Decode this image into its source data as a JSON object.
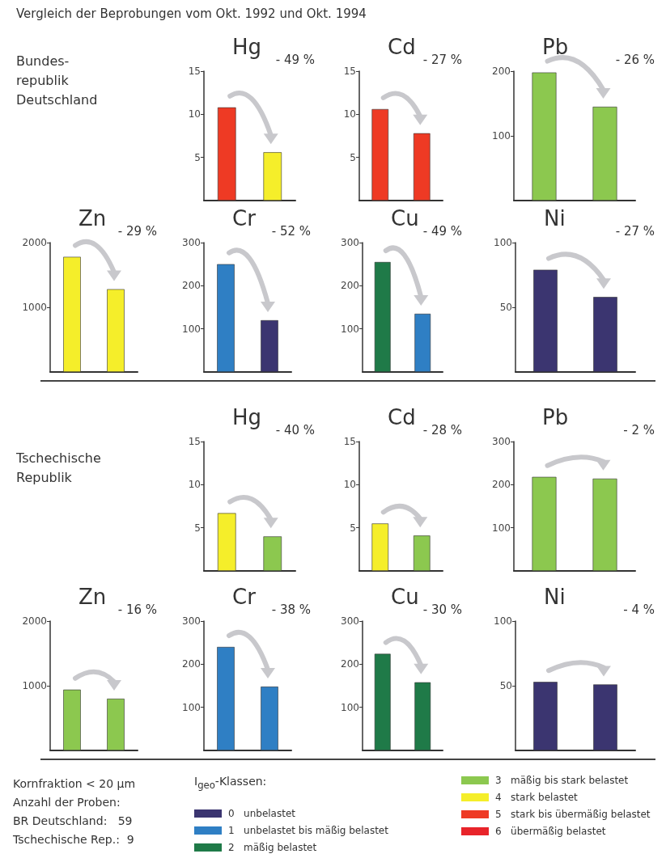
{
  "chart_data": [
    {
      "type": "other",
      "title": "Vergleich der Beprobungen vom Okt. 1992 und Okt. 1994"
    },
    {
      "type": "other",
      "annotations": [
        "Bundes-",
        "republik",
        "Deutschland"
      ]
    },
    {
      "type": "bar",
      "title": "Hg",
      "categories": [
        null,
        null
      ],
      "values": [
        10.8,
        5.6
      ],
      "colors": [
        "#ee3a24",
        "#f5ee2a"
      ],
      "ylim": [
        0,
        15
      ],
      "yticks": [
        5,
        10,
        15
      ],
      "annotations": [
        "- 49 %"
      ],
      "tick_labels": "y",
      "grid": false
    },
    {
      "type": "bar",
      "title": "Cd",
      "categories": [
        null,
        null
      ],
      "values": [
        10.6,
        7.8
      ],
      "colors": [
        "#ee3a24",
        "#ee3a24"
      ],
      "ylim": [
        0,
        15
      ],
      "yticks": [
        5,
        10,
        15
      ],
      "annotations": [
        "- 27 %"
      ],
      "tick_labels": "y",
      "grid": false
    },
    {
      "type": "bar",
      "title": "Pb",
      "categories": [
        null,
        null
      ],
      "values": [
        198,
        145
      ],
      "colors": [
        "#8cc84f",
        "#8cc84f"
      ],
      "ylim": [
        0,
        200
      ],
      "yticks": [
        100,
        200
      ],
      "annotations": [
        "- 26 %"
      ],
      "tick_labels": "y",
      "grid": false
    },
    {
      "type": "bar",
      "title": "Zn",
      "categories": [
        null,
        null
      ],
      "values": [
        1780,
        1280
      ],
      "colors": [
        "#f5ee2a",
        "#f5ee2a"
      ],
      "ylim": [
        0,
        2000
      ],
      "yticks": [
        1000,
        2000
      ],
      "annotations": [
        "- 29 %"
      ],
      "tick_labels": "y",
      "grid": false
    },
    {
      "type": "bar",
      "title": "Cr",
      "categories": [
        null,
        null
      ],
      "values": [
        250,
        120
      ],
      "colors": [
        "#2f7fc4",
        "#3b3570"
      ],
      "ylim": [
        0,
        300
      ],
      "yticks": [
        100,
        200,
        300
      ],
      "annotations": [
        "- 52 %"
      ],
      "tick_labels": "y",
      "grid": false
    },
    {
      "type": "bar",
      "title": "Cu",
      "categories": [
        null,
        null
      ],
      "values": [
        255,
        135
      ],
      "colors": [
        "#1f7a48",
        "#2f7fc4"
      ],
      "ylim": [
        0,
        300
      ],
      "yticks": [
        100,
        200,
        300
      ],
      "annotations": [
        "- 49 %"
      ],
      "tick_labels": "y",
      "grid": false
    },
    {
      "type": "bar",
      "title": "Ni",
      "categories": [
        null,
        null
      ],
      "values": [
        79,
        58
      ],
      "colors": [
        "#3b3570",
        "#3b3570"
      ],
      "ylim": [
        0,
        100
      ],
      "yticks": [
        50,
        100
      ],
      "annotations": [
        "- 27 %"
      ],
      "tick_labels": "y",
      "grid": false
    },
    {
      "type": "other",
      "annotations": [
        "Tschechische",
        "Republik"
      ]
    },
    {
      "type": "bar",
      "title": "Hg",
      "categories": [
        null,
        null
      ],
      "values": [
        6.7,
        4.0
      ],
      "colors": [
        "#f5ee2a",
        "#8cc84f"
      ],
      "ylim": [
        0,
        15
      ],
      "yticks": [
        5,
        10,
        15
      ],
      "annotations": [
        "- 40 %"
      ],
      "tick_labels": "y",
      "grid": false
    },
    {
      "type": "bar",
      "title": "Cd",
      "categories": [
        null,
        null
      ],
      "values": [
        5.5,
        4.1
      ],
      "colors": [
        "#f5ee2a",
        "#8cc84f"
      ],
      "ylim": [
        0,
        15
      ],
      "yticks": [
        5,
        10,
        15
      ],
      "annotations": [
        "- 28 %"
      ],
      "tick_labels": "y",
      "grid": false
    },
    {
      "type": "bar",
      "title": "Pb",
      "categories": [
        null,
        null
      ],
      "values": [
        218,
        214
      ],
      "colors": [
        "#8cc84f",
        "#8cc84f"
      ],
      "ylim": [
        0,
        300
      ],
      "yticks": [
        100,
        200,
        300
      ],
      "annotations": [
        "- 2 %"
      ],
      "tick_labels": "y",
      "grid": false
    },
    {
      "type": "bar",
      "title": "Zn",
      "categories": [
        null,
        null
      ],
      "values": [
        940,
        800
      ],
      "colors": [
        "#8cc84f",
        "#8cc84f"
      ],
      "ylim": [
        0,
        2000
      ],
      "yticks": [
        1000,
        2000
      ],
      "annotations": [
        "- 16 %"
      ],
      "tick_labels": "y",
      "grid": false
    },
    {
      "type": "bar",
      "title": "Cr",
      "categories": [
        null,
        null
      ],
      "values": [
        240,
        148
      ],
      "colors": [
        "#2f7fc4",
        "#2f7fc4"
      ],
      "ylim": [
        0,
        300
      ],
      "yticks": [
        100,
        200,
        300
      ],
      "annotations": [
        "- 38 %"
      ],
      "tick_labels": "y",
      "grid": false
    },
    {
      "type": "bar",
      "title": "Cu",
      "categories": [
        null,
        null
      ],
      "values": [
        224,
        158
      ],
      "colors": [
        "#1f7a48",
        "#1f7a48"
      ],
      "ylim": [
        0,
        300
      ],
      "yticks": [
        100,
        200,
        300
      ],
      "annotations": [
        "- 30 %"
      ],
      "tick_labels": "y",
      "grid": false
    },
    {
      "type": "bar",
      "title": "Ni",
      "categories": [
        null,
        null
      ],
      "values": [
        53,
        51
      ],
      "colors": [
        "#3b3570",
        "#3b3570"
      ],
      "ylim": [
        0,
        100
      ],
      "yticks": [
        50,
        100
      ],
      "annotations": [
        "- 4 %"
      ],
      "tick_labels": "y",
      "grid": false
    },
    {
      "type": "other",
      "annotations": [
        "Kornfraktion < 20 µm",
        "Anzahl der Proben:",
        "BR Deutschland:   59",
        "Tschechische Rep.:  9"
      ]
    },
    {
      "type": "other",
      "title": "I$_{geo}$-Klassen:",
      "categories": [
        "0   unbelastet",
        "1   unbelastet bis mäßig belastet",
        "2   mäßig belastet",
        "3   mäßig bis stark belastet",
        "4   stark belastet",
        "5   stark bis übermäßig belastet",
        "6   übermäßig belastet"
      ],
      "colors": [
        "#3b3570",
        "#2f7fc4",
        "#1f7a48",
        "#8cc84f",
        "#f5ee2a",
        "#ee3a24",
        "#e8242a"
      ]
    }
  ]
}
